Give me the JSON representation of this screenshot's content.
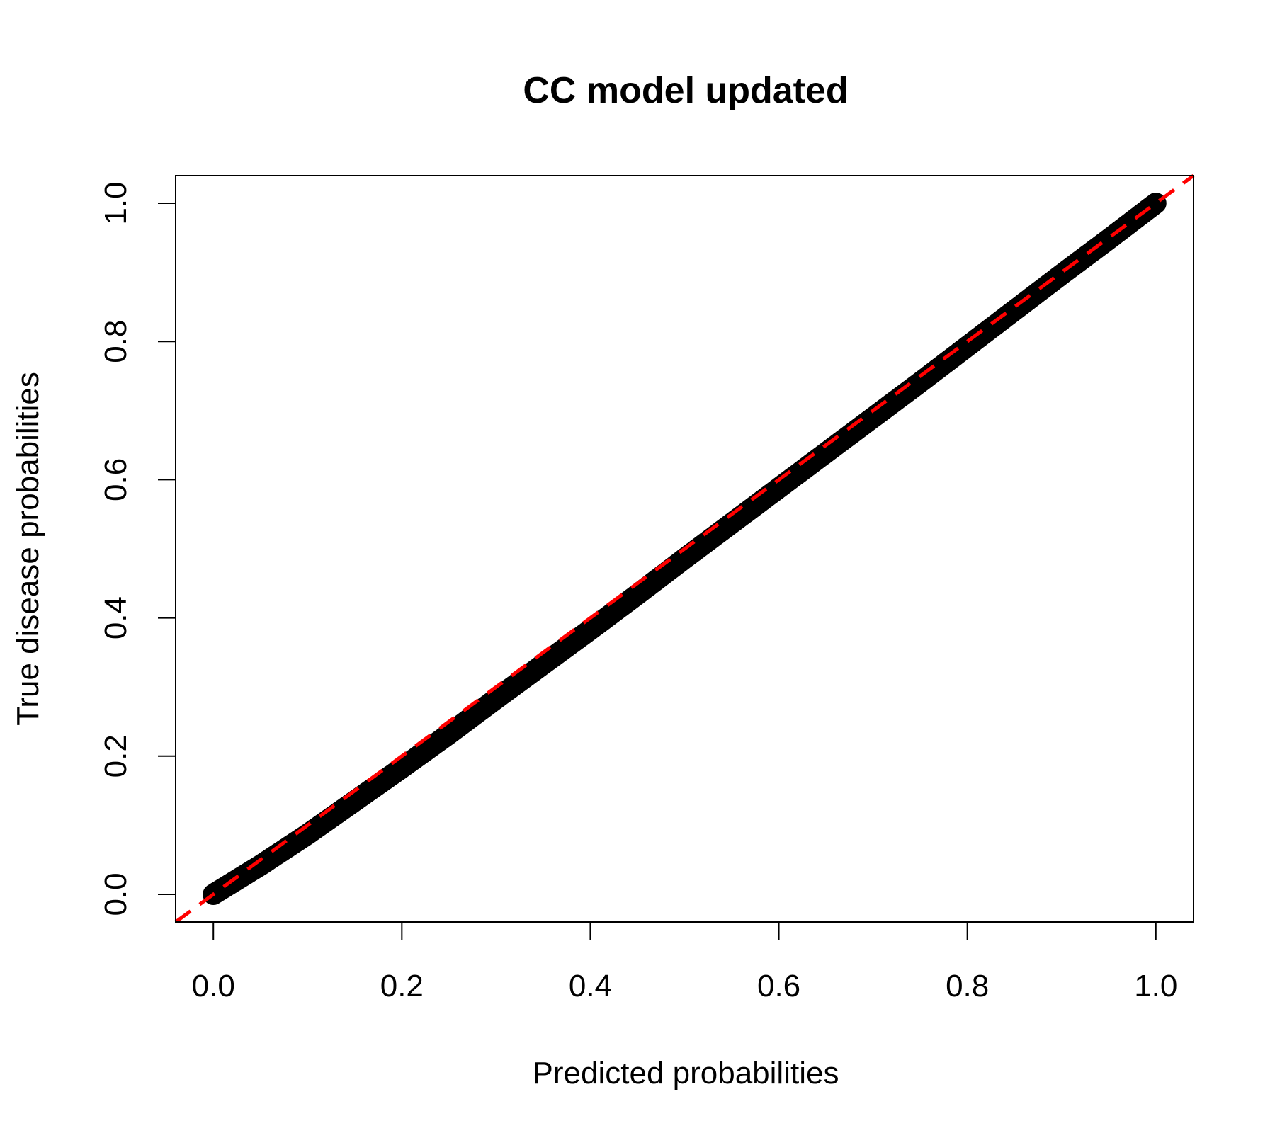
{
  "chart_data": {
    "type": "scatter",
    "title": "CC model updated",
    "xlabel": "Predicted probabilities",
    "ylabel": "True disease probabilities",
    "xlim": [
      -0.04,
      1.04
    ],
    "ylim": [
      -0.04,
      1.04
    ],
    "xticks": [
      "0.0",
      "0.2",
      "0.4",
      "0.6",
      "0.8",
      "1.0"
    ],
    "yticks": [
      "0.0",
      "0.2",
      "0.4",
      "0.6",
      "0.8",
      "1.0"
    ],
    "grid": false,
    "series": [
      {
        "style": "points",
        "color": "#000000",
        "x": [
          0.0,
          0.05,
          0.1,
          0.15,
          0.2,
          0.25,
          0.3,
          0.35,
          0.4,
          0.45,
          0.5,
          0.55,
          0.6,
          0.65,
          0.7,
          0.75,
          0.8,
          0.85,
          0.9,
          0.95,
          1.0
        ],
        "y": [
          0.0,
          0.042,
          0.087,
          0.135,
          0.183,
          0.232,
          0.283,
          0.333,
          0.383,
          0.434,
          0.486,
          0.537,
          0.588,
          0.639,
          0.69,
          0.741,
          0.793,
          0.845,
          0.897,
          0.948,
          1.0
        ]
      },
      {
        "style": "dashed-line",
        "color": "#ff0000",
        "x": [
          -0.04,
          1.04
        ],
        "y": [
          -0.04,
          1.04
        ]
      }
    ]
  }
}
